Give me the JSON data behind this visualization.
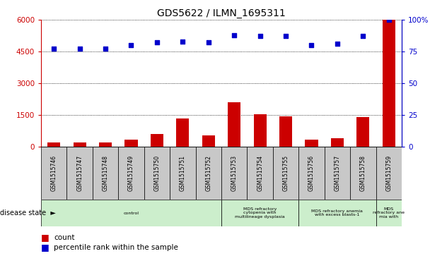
{
  "title": "GDS5622 / ILMN_1695311",
  "samples": [
    "GSM1515746",
    "GSM1515747",
    "GSM1515748",
    "GSM1515749",
    "GSM1515750",
    "GSM1515751",
    "GSM1515752",
    "GSM1515753",
    "GSM1515754",
    "GSM1515755",
    "GSM1515756",
    "GSM1515757",
    "GSM1515758",
    "GSM1515759"
  ],
  "counts": [
    200,
    200,
    200,
    350,
    600,
    1350,
    550,
    2100,
    1550,
    1450,
    350,
    400,
    1400,
    6000
  ],
  "percentile_ranks": [
    77,
    77,
    77,
    80,
    82,
    83,
    82,
    88,
    87,
    87,
    80,
    81,
    87,
    100
  ],
  "ylim_left": [
    0,
    6000
  ],
  "ylim_right": [
    0,
    100
  ],
  "yticks_left": [
    0,
    1500,
    3000,
    4500,
    6000
  ],
  "yticks_right": [
    0,
    25,
    50,
    75,
    100
  ],
  "bar_color": "#cc0000",
  "dot_color": "#0000cc",
  "disease_boxes": [
    {
      "label": "control",
      "start": 0,
      "end": 7
    },
    {
      "label": "MDS refractory\ncytopenia with\nmultilineage dysplasia",
      "start": 7,
      "end": 10
    },
    {
      "label": "MDS refractory anemia\nwith excess blasts-1",
      "start": 10,
      "end": 13
    },
    {
      "label": "MDS\nrefractory ane\nmia with",
      "start": 13,
      "end": 14
    }
  ],
  "tick_color_left": "#cc0000",
  "tick_color_right": "#0000cc",
  "bar_bg_color": "#c8c8c8",
  "disease_color": "#cceecc",
  "ds_label": "disease state"
}
